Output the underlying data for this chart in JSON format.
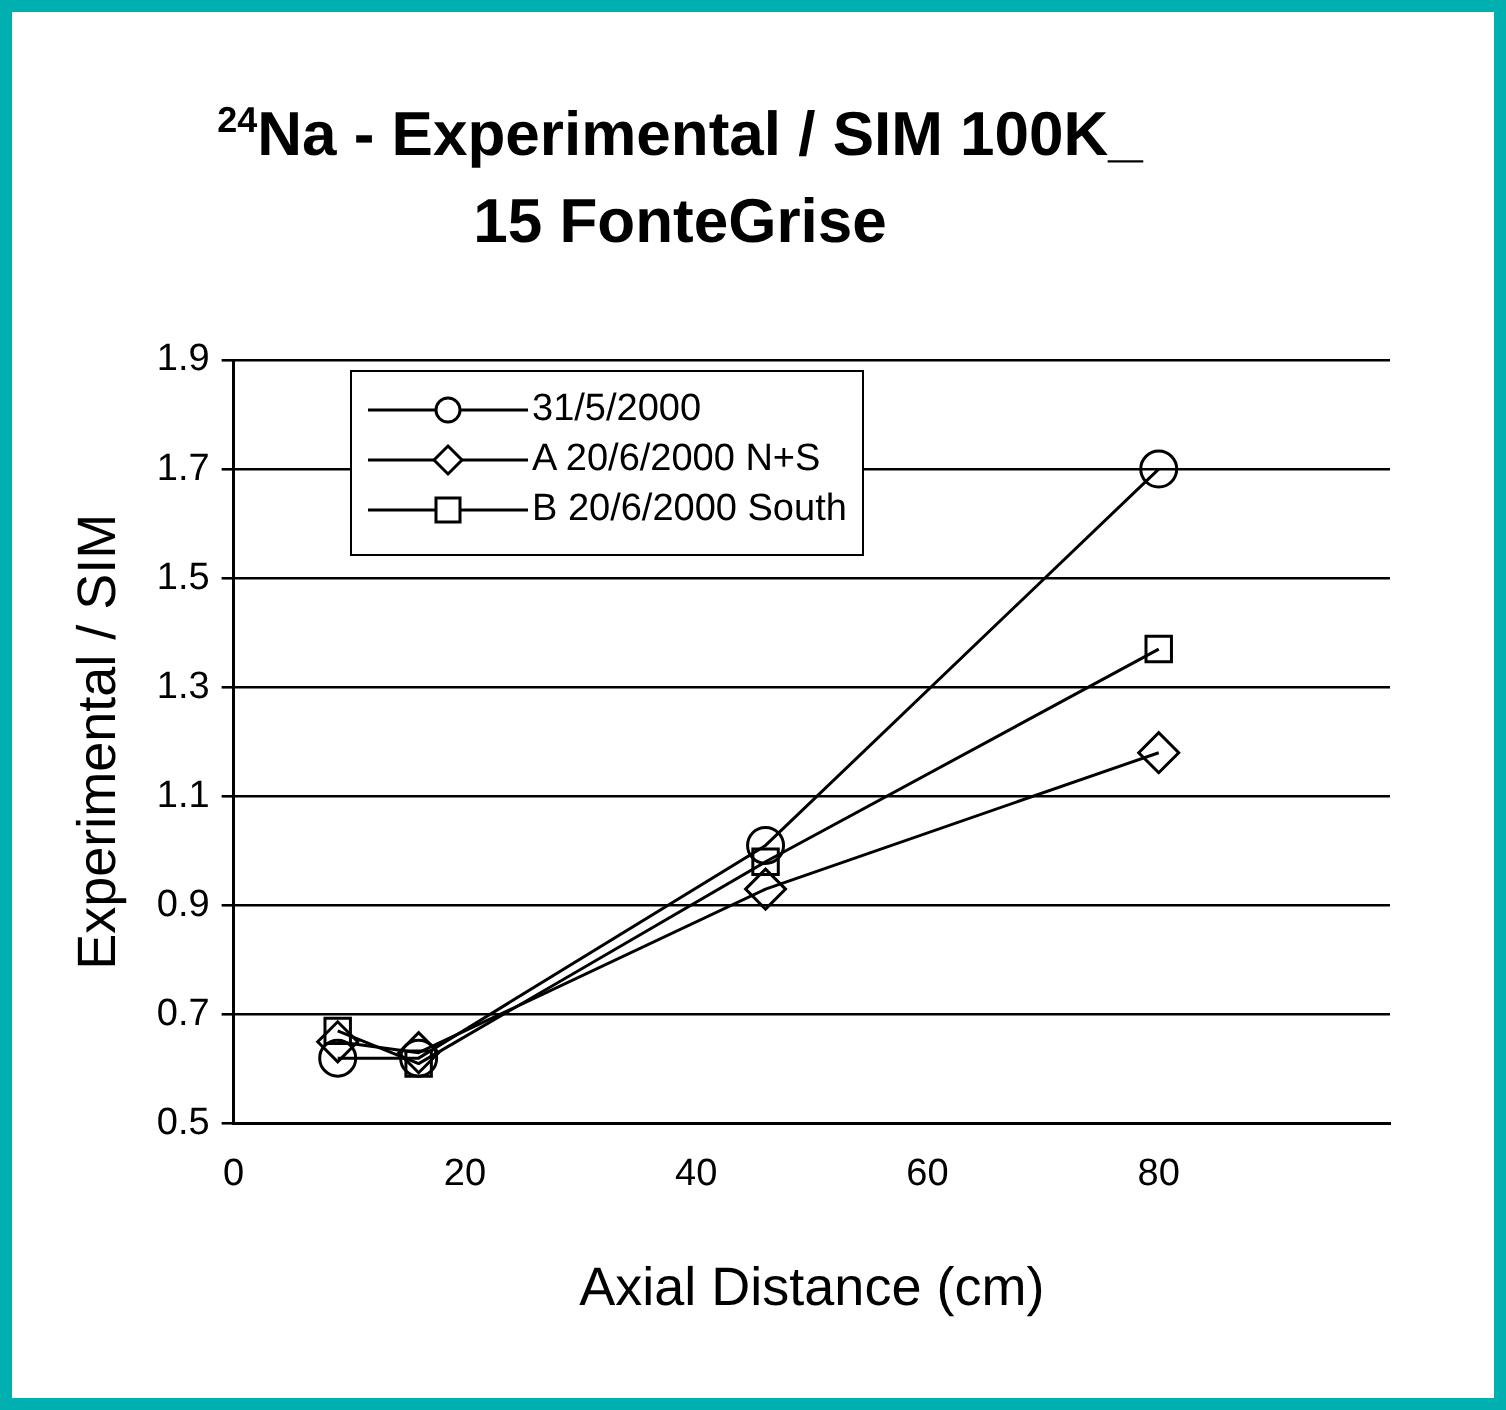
{
  "chart_data": {
    "type": "line",
    "title": "$^{24}$Na - Experimental / SIM 100K_\n15 FonteGrise",
    "xlabel": "Axial Distance (cm)",
    "ylabel": "Experimental / SIM",
    "series": [
      {
        "name": "31/5/2000",
        "color": "#000000",
        "marker": "circle",
        "x": [
          9,
          16,
          46,
          80
        ],
        "values": [
          0.62,
          0.62,
          1.01,
          1.7
        ]
      },
      {
        "name": "A 20/6/2000  N+S",
        "color": "#000000",
        "marker": "diamond",
        "x": [
          9,
          16,
          46,
          80
        ],
        "values": [
          0.65,
          0.63,
          0.93,
          1.18
        ]
      },
      {
        "name": "B 20/6/2000 South",
        "color": "#000000",
        "marker": "square",
        "x": [
          9,
          16,
          46,
          80
        ],
        "values": [
          0.67,
          0.61,
          0.98,
          1.37
        ]
      }
    ],
    "xlim": [
      0,
      100
    ],
    "xticks": [
      0,
      20,
      40,
      60,
      80
    ],
    "ylim": [
      0.5,
      1.9
    ],
    "yticks": [
      0.5,
      0.7,
      0.9,
      1.1,
      1.3,
      1.5,
      1.7,
      1.9
    ],
    "grid": "y",
    "legend": "top left",
    "line_style": "solid"
  }
}
